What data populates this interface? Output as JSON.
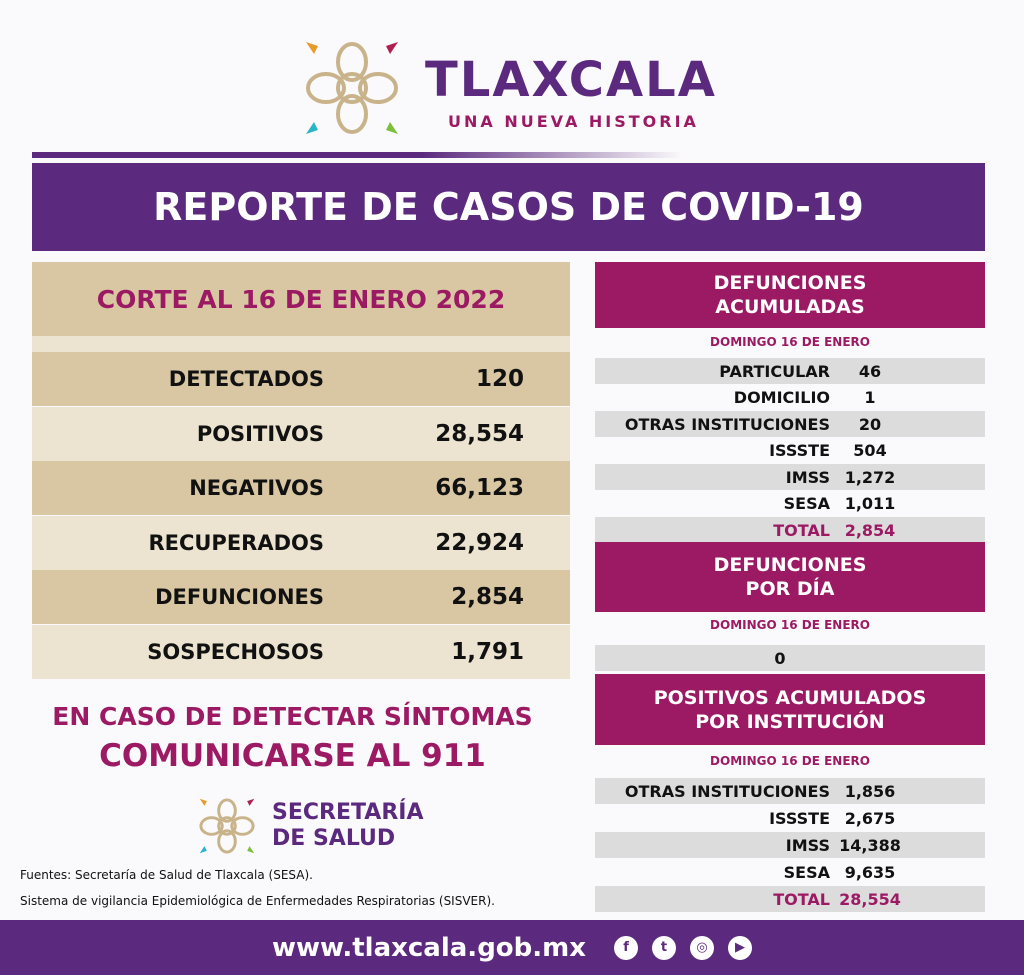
{
  "header": {
    "brand": "TLAXCALA",
    "tagline": "UNA NUEVA HISTORIA",
    "banner": "REPORTE DE CASOS DE COVID-19"
  },
  "summary": {
    "title": "CORTE AL 16 DE ENERO 2022",
    "rows": [
      {
        "label": "DETECTADOS",
        "value": "120"
      },
      {
        "label": "POSITIVOS",
        "value": "28,554"
      },
      {
        "label": "NEGATIVOS",
        "value": "66,123"
      },
      {
        "label": "RECUPERADOS",
        "value": "22,924"
      },
      {
        "label": "DEFUNCIONES",
        "value": "2,854"
      },
      {
        "label": "SOSPECHOSOS",
        "value": "1,791"
      }
    ]
  },
  "defunciones_acumuladas": {
    "title_line1": "DEFUNCIONES",
    "title_line2": "ACUMULADAS",
    "date": "DOMINGO 16 DE ENERO",
    "rows": [
      {
        "label": "PARTICULAR",
        "value": "46"
      },
      {
        "label": "DOMICILIO",
        "value": "1"
      },
      {
        "label": "OTRAS INSTITUCIONES",
        "value": "20"
      },
      {
        "label": "ISSSTE",
        "value": "504"
      },
      {
        "label": "IMSS",
        "value": "1,272"
      },
      {
        "label": "SESA",
        "value": "1,011"
      },
      {
        "label": "TOTAL",
        "value": "2,854"
      }
    ]
  },
  "defunciones_dia": {
    "title_line1": "DEFUNCIONES",
    "title_line2": "POR DÍA",
    "date": "DOMINGO 16 DE ENERO",
    "value": "0"
  },
  "positivos_institucion": {
    "title_line1": "POSITIVOS ACUMULADOS",
    "title_line2": "POR INSTITUCIÓN",
    "date": "DOMINGO 16 DE ENERO",
    "rows": [
      {
        "label": "OTRAS INSTITUCIONES",
        "value": "1,856"
      },
      {
        "label": "ISSSTE",
        "value": "2,675"
      },
      {
        "label": "IMSS",
        "value": "14,388"
      },
      {
        "label": "SESA",
        "value": "9,635"
      },
      {
        "label": "TOTAL",
        "value": "28,554"
      }
    ]
  },
  "callout": {
    "line1": "EN CASO DE DETECTAR SÍNTOMAS",
    "line2": "COMUNICARSE AL 911"
  },
  "secretaria": {
    "line1": "SECRETARÍA",
    "line2": "DE SALUD"
  },
  "sources": {
    "line1": "Fuentes:  Secretaría de Salud de Tlaxcala (SESA).",
    "line2": "Sistema de vigilancia Epidemiológica de Enfermedades Respiratorias (SISVER)."
  },
  "footer": {
    "url": "www.tlaxcala.gob.mx",
    "social": [
      "facebook-icon",
      "twitter-icon",
      "instagram-icon",
      "youtube-icon"
    ]
  },
  "colors": {
    "purple": "#5b2a7e",
    "magenta": "#9c1a63",
    "tan": "#d8c7a2",
    "gray": "#dcdcdc"
  }
}
